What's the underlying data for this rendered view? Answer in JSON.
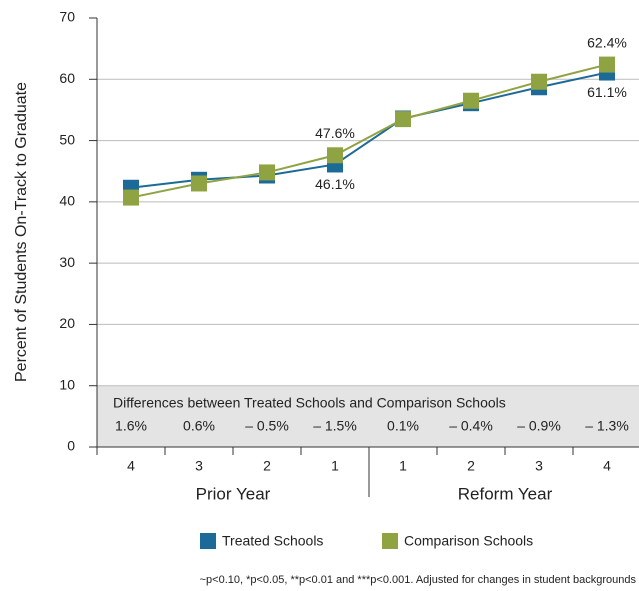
{
  "chart_data": {
    "type": "line",
    "ylabel": "Percent of Students On-Track to Graduate",
    "categories": [
      "4",
      "3",
      "2",
      "1",
      "1",
      "2",
      "3",
      "4"
    ],
    "groups": [
      "Prior Year",
      "Reform Year"
    ],
    "series": [
      {
        "name": "Treated Schools",
        "color": "#1c6a98",
        "values": [
          42.3,
          43.6,
          44.3,
          46.1,
          53.6,
          56.1,
          58.7,
          61.1
        ],
        "value_labels": [
          null,
          null,
          null,
          "46.1%",
          null,
          null,
          null,
          "61.1%"
        ]
      },
      {
        "name": "Comparison Schools",
        "color": "#8fa343",
        "values": [
          40.7,
          43.0,
          44.8,
          47.6,
          53.5,
          56.5,
          59.6,
          62.4
        ],
        "value_labels": [
          null,
          null,
          null,
          "47.6%",
          null,
          null,
          null,
          "62.4%"
        ]
      }
    ],
    "differences": {
      "title": "Differences between Treated Schools and Comparison Schools",
      "labels": [
        "1.6%",
        "0.6%",
        "– 0.5%",
        "– 1.5%",
        "0.1%",
        "– 0.4%",
        "– 0.9%",
        "– 1.3%"
      ]
    },
    "ylim": [
      0,
      70
    ],
    "yticks": [
      0,
      10,
      20,
      30,
      40,
      50,
      60,
      70
    ],
    "grid": true,
    "footnote": "~p<0.10, *p<0.05, **p<0.01 and ***p<0.001. Adjusted for changes in student backgrounds"
  }
}
